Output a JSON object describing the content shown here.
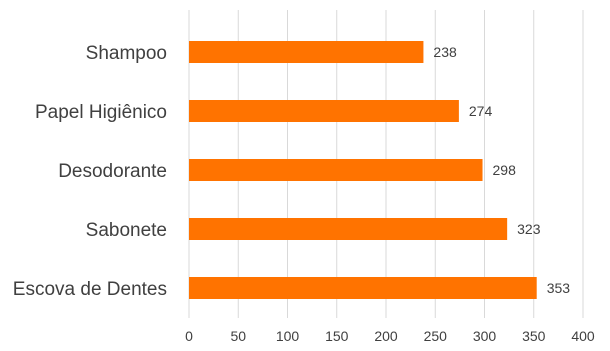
{
  "chart_data": {
    "type": "bar",
    "orientation": "horizontal",
    "categories": [
      "Shampoo",
      "Papel Higiênico",
      "Desodorante",
      "Sabonete",
      "Escova de Dentes"
    ],
    "values": [
      238,
      274,
      298,
      323,
      353
    ],
    "xlim": [
      0,
      400
    ],
    "x_ticks": [
      0,
      50,
      100,
      150,
      200,
      250,
      300,
      350,
      400
    ],
    "grid": "vertical",
    "legend": "none",
    "bar_color": "#ff7300",
    "data_labels": true
  }
}
